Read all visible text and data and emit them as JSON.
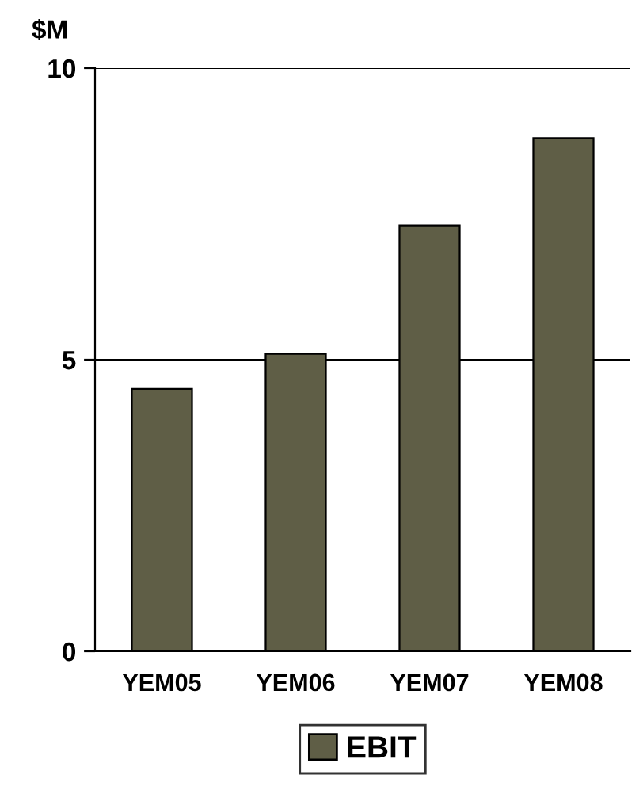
{
  "chart_data": {
    "type": "bar",
    "ylabel": "$M",
    "categories": [
      "YEM05",
      "YEM06",
      "YEM07",
      "YEM08"
    ],
    "series": [
      {
        "name": "EBIT",
        "color": "#5f5e46",
        "values": [
          4.5,
          5.1,
          7.3,
          8.8
        ]
      }
    ],
    "ylim": [
      0,
      10
    ],
    "yticks": [
      0,
      5,
      10
    ],
    "grid": "y",
    "legend": "bottom"
  }
}
